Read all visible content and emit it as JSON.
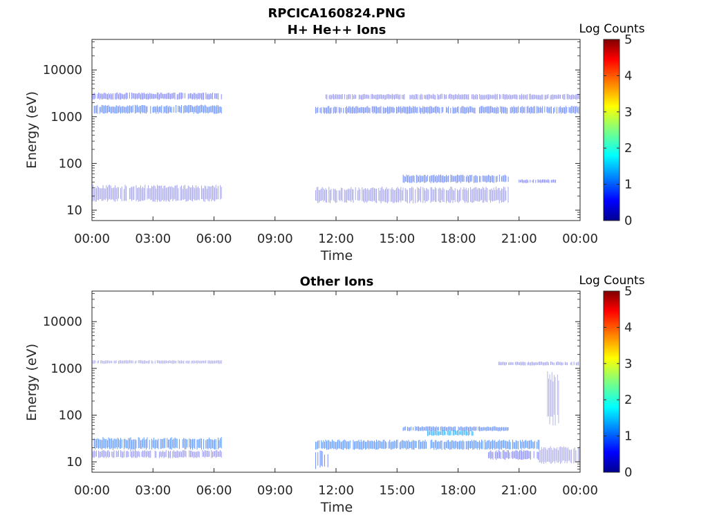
{
  "figure": {
    "title": "RPCICA160824.PNG"
  },
  "colors": {
    "low": "#00008f",
    "accent": "#2a3fd0"
  },
  "chart_data": [
    {
      "type": "heatmap",
      "title": "H+ He++ Ions",
      "xlabel": "Time",
      "ylabel": "Energy (eV)",
      "yscale": "log",
      "ylim": [
        6,
        45000
      ],
      "xlim_hours": [
        0,
        24
      ],
      "x_ticks": [
        "00:00",
        "03:00",
        "06:00",
        "09:00",
        "12:00",
        "15:00",
        "18:00",
        "21:00",
        "00:00"
      ],
      "y_ticks": [
        "10",
        "100",
        "1000",
        "10000"
      ],
      "colorbar": {
        "title": "Log Counts",
        "range": [
          0,
          5
        ],
        "ticks": [
          "0",
          "1",
          "2",
          "3",
          "4",
          "5"
        ]
      },
      "bands": [
        {
          "t_start": 0.0,
          "t_end": 6.4,
          "e_low": 2300,
          "e_high": 3300,
          "log_counts": 0.6
        },
        {
          "t_start": 0.0,
          "t_end": 6.4,
          "e_low": 1150,
          "e_high": 1800,
          "log_counts": 0.9
        },
        {
          "t_start": 11.0,
          "t_end": 24.0,
          "e_low": 1150,
          "e_high": 1700,
          "log_counts": 0.8
        },
        {
          "t_start": 11.5,
          "t_end": 24.0,
          "e_low": 2300,
          "e_high": 3100,
          "log_counts": 0.4
        },
        {
          "t_start": 15.3,
          "t_end": 20.5,
          "e_low": 38,
          "e_high": 58,
          "log_counts": 0.8
        },
        {
          "t_start": 21.0,
          "t_end": 22.8,
          "e_low": 38,
          "e_high": 46,
          "log_counts": 0.6
        },
        {
          "t_start": 0.0,
          "t_end": 6.4,
          "e_low": 15,
          "e_high": 35,
          "log_counts": 0.3
        },
        {
          "t_start": 11.0,
          "t_end": 20.5,
          "e_low": 14,
          "e_high": 32,
          "log_counts": 0.3
        }
      ]
    },
    {
      "type": "heatmap",
      "title": "Other Ions",
      "xlabel": "Time",
      "ylabel": "Energy (eV)",
      "yscale": "log",
      "ylim": [
        6,
        45000
      ],
      "xlim_hours": [
        0,
        24
      ],
      "x_ticks": [
        "00:00",
        "03:00",
        "06:00",
        "09:00",
        "12:00",
        "15:00",
        "18:00",
        "21:00",
        "00:00"
      ],
      "y_ticks": [
        "10",
        "100",
        "1000",
        "10000"
      ],
      "colorbar": {
        "title": "Log Counts",
        "range": [
          0,
          5
        ],
        "ticks": [
          "0",
          "1",
          "2",
          "3",
          "4",
          "5"
        ]
      },
      "bands": [
        {
          "t_start": 0.0,
          "t_end": 6.4,
          "e_low": 18,
          "e_high": 34,
          "log_counts": 1.0
        },
        {
          "t_start": 0.0,
          "t_end": 6.4,
          "e_low": 12,
          "e_high": 18,
          "log_counts": 0.4
        },
        {
          "t_start": 11.0,
          "t_end": 22.0,
          "e_low": 18,
          "e_high": 30,
          "log_counts": 1.0
        },
        {
          "t_start": 11.0,
          "t_end": 11.6,
          "e_low": 7,
          "e_high": 18,
          "log_counts": 0.8
        },
        {
          "t_start": 19.5,
          "t_end": 22.0,
          "e_low": 11,
          "e_high": 18,
          "log_counts": 0.6
        },
        {
          "t_start": 15.3,
          "t_end": 20.5,
          "e_low": 45,
          "e_high": 58,
          "log_counts": 0.9
        },
        {
          "t_start": 16.5,
          "t_end": 18.8,
          "e_low": 36,
          "e_high": 48,
          "log_counts": 1.3
        },
        {
          "t_start": 0.0,
          "t_end": 6.4,
          "e_low": 1250,
          "e_high": 1500,
          "log_counts": 0.2
        },
        {
          "t_start": 20.0,
          "t_end": 24.0,
          "e_low": 1150,
          "e_high": 1400,
          "log_counts": 0.3
        },
        {
          "t_start": 22.0,
          "t_end": 24.0,
          "e_low": 9,
          "e_high": 22,
          "log_counts": 0.2
        },
        {
          "t_start": 22.4,
          "t_end": 23.0,
          "e_low": 60,
          "e_high": 900,
          "log_counts": 0.15
        }
      ]
    }
  ]
}
